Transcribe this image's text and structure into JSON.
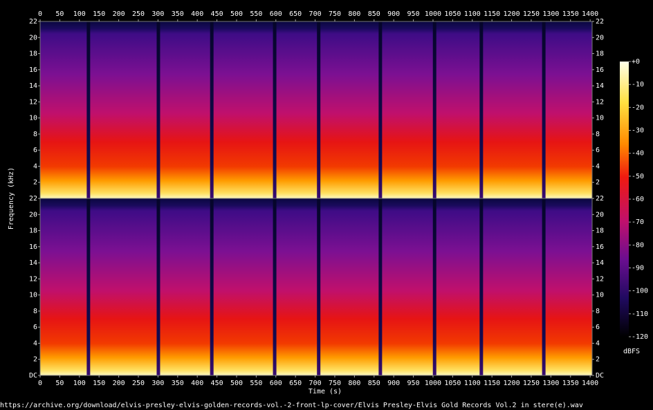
{
  "chart_data": [
    {
      "type": "spectrogram",
      "xlim": [
        0,
        1405
      ],
      "xticks": [
        0,
        50,
        100,
        150,
        200,
        250,
        300,
        350,
        400,
        450,
        500,
        550,
        600,
        650,
        700,
        750,
        800,
        850,
        900,
        950,
        1000,
        1050,
        1100,
        1150,
        1200,
        1250,
        1300,
        1350,
        1400
      ],
      "ylim": [
        0,
        22
      ],
      "yticks": [
        2,
        4,
        6,
        8,
        10,
        12,
        14,
        16,
        18,
        20,
        22
      ],
      "silences": [
        123,
        301,
        437,
        597,
        709,
        866,
        1004,
        1123,
        1282
      ]
    },
    {
      "type": "spectrogram",
      "xlim": [
        0,
        1405
      ],
      "xticks": [
        0,
        50,
        100,
        150,
        200,
        250,
        300,
        350,
        400,
        450,
        500,
        550,
        600,
        650,
        700,
        750,
        800,
        850,
        900,
        950,
        1000,
        1050,
        1100,
        1150,
        1200,
        1250,
        1300,
        1350,
        1400
      ],
      "ylim": [
        0,
        22
      ],
      "yticks": [
        {
          "value": 0,
          "label": "DC"
        },
        2,
        4,
        6,
        8,
        10,
        12,
        14,
        16,
        18,
        20,
        22
      ],
      "silences": [
        123,
        301,
        437,
        597,
        709,
        866,
        1004,
        1123,
        1282
      ],
      "x_label": "Time (s)"
    }
  ],
  "y_label": "Frequency (kHz)",
  "colorbar": {
    "label": "dBFS",
    "lim": [
      -120,
      0
    ],
    "ticks": [
      {
        "value": 0,
        "label": "+0"
      },
      -10,
      -20,
      -30,
      -40,
      -50,
      -60,
      -70,
      -80,
      -90,
      -100,
      -110,
      -120
    ]
  },
  "caption": "https://archive.org/download/elvis-presley-elvis-golden-records-vol.-2-front-lp-cover/Elvis Presley-Elvis Gold Records Vol.2 in stere(e).wav"
}
